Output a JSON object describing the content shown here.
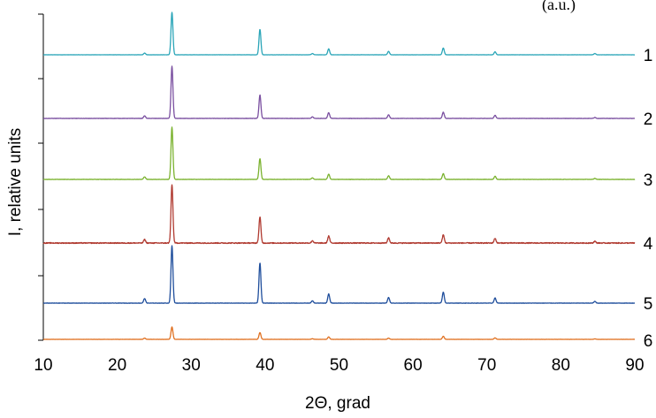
{
  "chart_data": {
    "type": "line",
    "title": "",
    "top_note": "(a.u.)",
    "xlabel": "2Θ, grad",
    "ylabel": "I, relative units",
    "xlim": [
      10,
      90
    ],
    "xticks": [
      "10",
      "20",
      "30",
      "40",
      "50",
      "60",
      "70",
      "80",
      "90"
    ],
    "grid": false,
    "legend": "none",
    "peak_positions": [
      23.7,
      27.4,
      39.3,
      46.4,
      48.6,
      56.7,
      64.1,
      71.1,
      84.6
    ],
    "series": [
      {
        "label": "1",
        "color": "#2aa5b8",
        "baseline_noise": 0.002,
        "peaks": [
          0.04,
          1.0,
          0.6,
          0.03,
          0.14,
          0.08,
          0.16,
          0.07,
          0.03
        ]
      },
      {
        "label": "2",
        "color": "#7a4fa0",
        "baseline_noise": 0.003,
        "peaks": [
          0.05,
          1.0,
          0.45,
          0.03,
          0.11,
          0.07,
          0.12,
          0.06,
          0.02
        ]
      },
      {
        "label": "3",
        "color": "#7ab22e",
        "baseline_noise": 0.003,
        "peaks": [
          0.05,
          1.0,
          0.4,
          0.03,
          0.1,
          0.07,
          0.11,
          0.06,
          0.02
        ]
      },
      {
        "label": "4",
        "color": "#b03a30",
        "baseline_noise": 0.008,
        "peaks": [
          0.06,
          1.0,
          0.45,
          0.04,
          0.12,
          0.09,
          0.14,
          0.08,
          0.03
        ]
      },
      {
        "label": "5",
        "color": "#1f4e9c",
        "baseline_noise": 0.003,
        "peaks": [
          0.08,
          1.0,
          0.7,
          0.04,
          0.16,
          0.1,
          0.19,
          0.09,
          0.03
        ]
      },
      {
        "label": "6",
        "color": "#e07020",
        "baseline_noise": 0.006,
        "peaks": [
          0.1,
          1.0,
          0.55,
          0.05,
          0.2,
          0.1,
          0.25,
          0.12,
          0.04
        ]
      }
    ]
  }
}
